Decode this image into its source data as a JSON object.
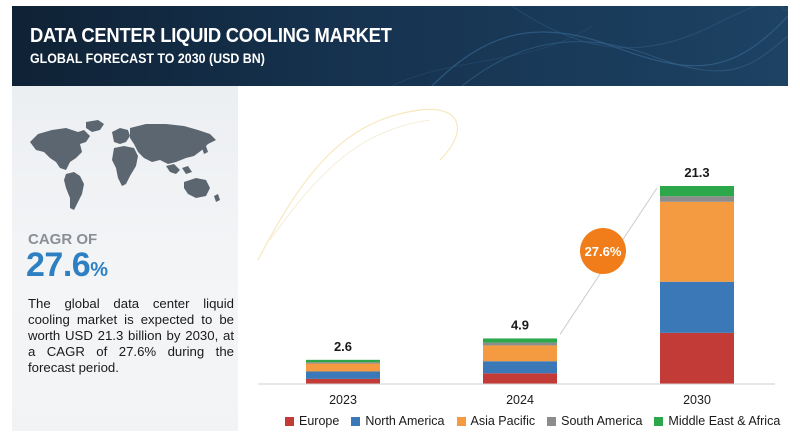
{
  "header": {
    "title": "DATA CENTER LIQUID COOLING MARKET",
    "subtitle": "GLOBAL FORECAST TO 2030 (USD BN)"
  },
  "summary": {
    "cagr_label": "CAGR OF",
    "cagr_value": "27.6",
    "cagr_unit": "%",
    "description": "The global data center liquid cooling market is expected to be worth USD 21.3 billion by 2030, at a CAGR of 27.6% during the forecast period."
  },
  "icons": [
    "world-map-icon"
  ],
  "chart_data": {
    "type": "bar",
    "stacked": true,
    "categories": [
      "2023",
      "2024",
      "2030"
    ],
    "totals": [
      2.6,
      4.9,
      21.3
    ],
    "total_labels": [
      "2.6",
      "4.9",
      "21.3"
    ],
    "series": [
      {
        "name": "Europe",
        "color": "#c23b36",
        "values": [
          0.55,
          1.15,
          5.5
        ]
      },
      {
        "name": "North America",
        "color": "#3a78b8",
        "values": [
          0.8,
          1.3,
          5.5
        ]
      },
      {
        "name": "Asia Pacific",
        "color": "#f49b42",
        "values": [
          0.85,
          1.7,
          8.6
        ]
      },
      {
        "name": "South America",
        "color": "#8c8c8c",
        "values": [
          0.15,
          0.3,
          0.6
        ]
      },
      {
        "name": "Middle East & Africa",
        "color": "#2ca84a",
        "values": [
          0.25,
          0.45,
          1.1
        ]
      }
    ],
    "cagr_badge": "27.6%",
    "ylim": [
      0,
      21.3
    ],
    "grid": false,
    "legend_position": "bottom"
  }
}
